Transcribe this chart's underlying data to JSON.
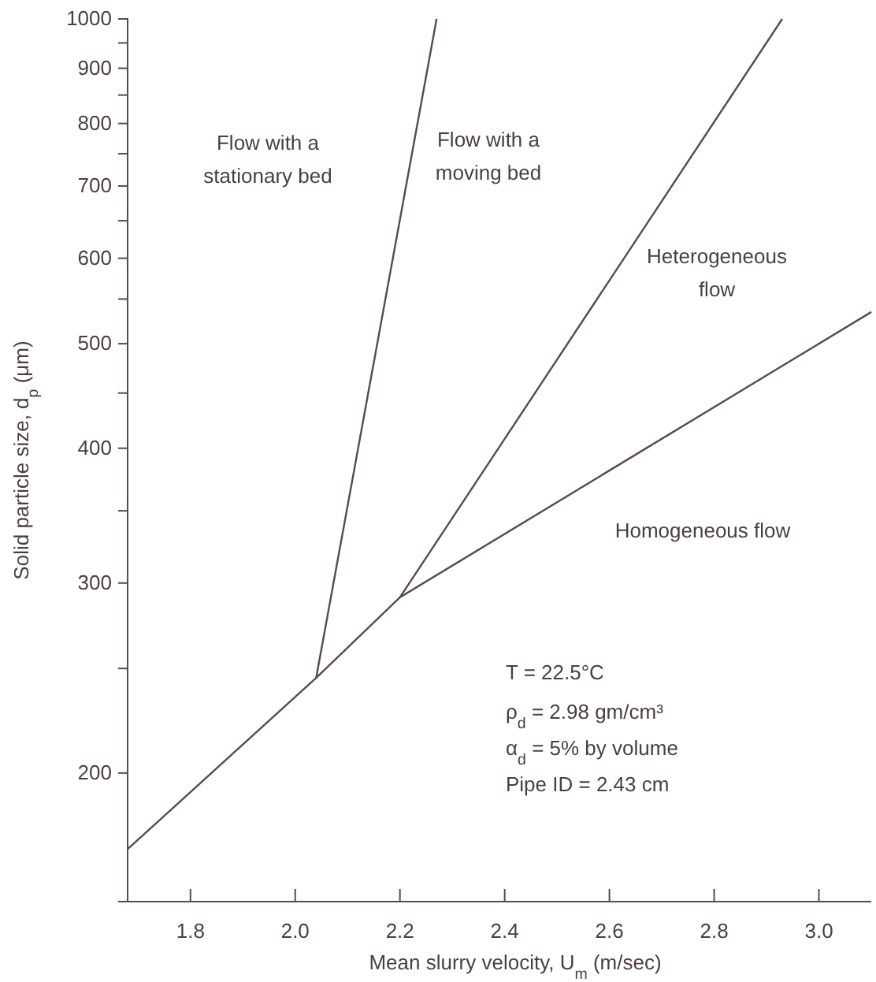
{
  "chart_data": {
    "type": "line",
    "xlabel": "Mean slurry velocity, U$_{m}$ (m/sec)",
    "ylabel": "Solid particle size, d$_{p}$ (μm)",
    "log": "y",
    "xlim": [
      1.68,
      3.1
    ],
    "xticks": [
      1.8,
      {
        "value": 2.0,
        "label": "2.0"
      },
      2.2,
      2.4,
      2.6,
      2.8,
      {
        "value": 3.0,
        "label": "3.0"
      }
    ],
    "ylim": [
      152,
      1000
    ],
    "yticks": [
      200,
      {
        "value": 250,
        "label": null
      },
      300,
      {
        "value": 350,
        "label": null
      },
      400,
      {
        "value": 450,
        "label": null
      },
      500,
      {
        "value": 550,
        "label": null
      },
      600,
      {
        "value": 650,
        "label": null
      },
      700,
      {
        "value": 750,
        "label": null
      },
      800,
      {
        "value": 850,
        "label": null
      },
      900,
      {
        "value": 950,
        "label": null
      },
      1000
    ],
    "grid": false,
    "series": [
      {
        "color": "#5a4a4a",
        "x": [
          1.68,
          2.04,
          2.2,
          3.1
        ],
        "values": [
          170,
          245,
          291,
          535
        ]
      },
      {
        "color": "#5a4a4a",
        "x": [
          2.04,
          2.27
        ],
        "values": [
          245,
          1000
        ]
      },
      {
        "color": "#5a4a4a",
        "x": [
          2.2,
          2.93
        ],
        "values": [
          291,
          1000
        ]
      }
    ],
    "annotations": [
      "Flow with a\nstationary bed",
      "Flow with a\nmoving bed",
      "Heterogeneous\nflow",
      "Homogeneous flow",
      "T = 22.5°C",
      "ρ$_{d}$ = 2.98 gm/cm³",
      "α$_{d}$ = 5% by volume",
      "Pipe ID = 2.43 cm"
    ]
  }
}
